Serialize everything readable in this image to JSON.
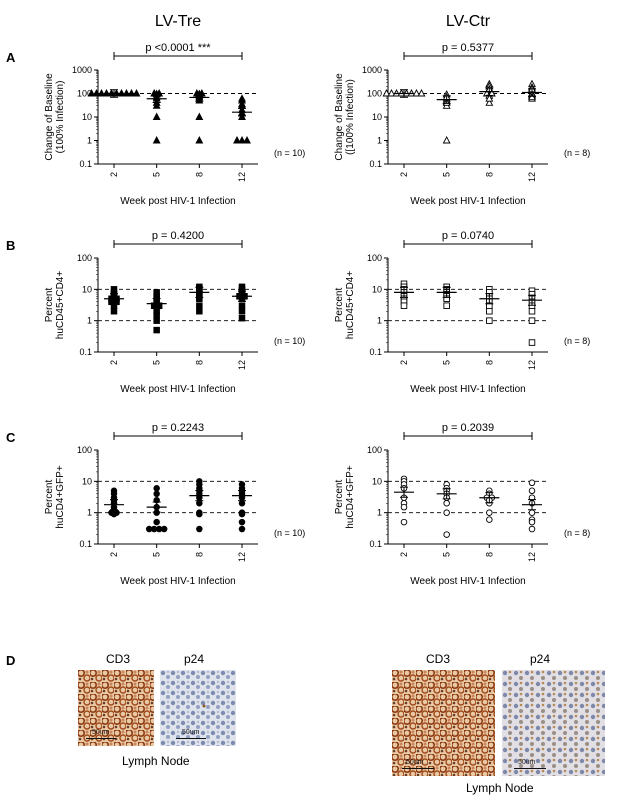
{
  "columns": [
    {
      "title": "LV-Tre"
    },
    {
      "title": "LV-Ctr"
    }
  ],
  "rows": [
    {
      "letter": "A",
      "ylabel1": "Change of Baseline",
      "ylabel2": "(100% Infection)",
      "ylabel2_right": "([100% Infection)",
      "marker": "triangle"
    },
    {
      "letter": "B",
      "ylabel1": "Percent",
      "ylabel2": "huCD45+CD4+",
      "marker": "square"
    },
    {
      "letter": "C",
      "ylabel1": "Percent",
      "ylabel2": "huCD4+GFP+",
      "marker": "circle"
    }
  ],
  "chart_data": [
    {
      "type": "scatter",
      "panel": "A",
      "group": "LV-Tre",
      "title": "p <0.0001 ***",
      "n_label": "(n = 10)",
      "xlabel": "Week post HIV-1 Infection",
      "ylabel": "Change of Baseline (100% Infection)",
      "categories": [
        "2",
        "5",
        "8",
        "12"
      ],
      "yscale": "log",
      "ylim": [
        0.1,
        1000
      ],
      "yticks": [
        "0.1",
        "1",
        "10",
        "100",
        "1000"
      ],
      "ref_lines": [
        100
      ],
      "filled": true,
      "marker": "triangle",
      "series": [
        {
          "x": "2",
          "values": [
            100,
            100,
            100,
            100,
            100,
            100,
            100,
            100,
            100,
            100
          ],
          "mean": 100
        },
        {
          "x": "5",
          "values": [
            100,
            95,
            60,
            30,
            1,
            100,
            90,
            70,
            40,
            10
          ],
          "mean": 60
        },
        {
          "x": "8",
          "values": [
            100,
            95,
            80,
            60,
            1,
            100,
            90,
            70,
            50,
            10
          ],
          "mean": 68
        },
        {
          "x": "12",
          "values": [
            60,
            35,
            20,
            15,
            1,
            1,
            1,
            10,
            30,
            50
          ],
          "mean": 16
        }
      ]
    },
    {
      "type": "scatter",
      "panel": "A",
      "group": "LV-Ctr",
      "title": "p = 0.5377",
      "n_label": "(n = 8)",
      "xlabel": "Week post HIV-1 Infection",
      "ylabel": "Change of Baseline ([100% Infection)",
      "categories": [
        "2",
        "5",
        "8",
        "12"
      ],
      "yscale": "log",
      "ylim": [
        0.1,
        1000
      ],
      "yticks": [
        "0.1",
        "1",
        "10",
        "100",
        "1000"
      ],
      "ref_lines": [
        100
      ],
      "filled": false,
      "marker": "triangle",
      "series": [
        {
          "x": "2",
          "values": [
            100,
            100,
            100,
            100,
            100,
            100,
            100,
            100
          ],
          "mean": 100
        },
        {
          "x": "5",
          "values": [
            90,
            60,
            45,
            50,
            30,
            1,
            70,
            40
          ],
          "mean": 55
        },
        {
          "x": "8",
          "values": [
            250,
            200,
            100,
            80,
            40,
            150,
            100,
            60
          ],
          "mean": 120
        },
        {
          "x": "12",
          "values": [
            250,
            180,
            100,
            80,
            60,
            150,
            90,
            70
          ],
          "mean": 110
        }
      ]
    },
    {
      "type": "scatter",
      "panel": "B",
      "group": "LV-Tre",
      "title": "p = 0.4200",
      "n_label": "(n = 10)",
      "xlabel": "Week post HIV-1 Infection",
      "ylabel": "Percent huCD45+CD4+",
      "categories": [
        "2",
        "5",
        "8",
        "12"
      ],
      "yscale": "log",
      "ylim": [
        0.1,
        100
      ],
      "yticks": [
        "0.1",
        "1",
        "10",
        "100"
      ],
      "ref_lines": [
        10,
        1
      ],
      "filled": true,
      "marker": "square",
      "series": [
        {
          "x": "2",
          "values": [
            8,
            6,
            5,
            4,
            3,
            10,
            7,
            5,
            4,
            2
          ],
          "mean": 5
        },
        {
          "x": "5",
          "values": [
            8,
            5,
            4,
            3,
            2,
            1,
            0.5,
            6,
            3,
            1.5
          ],
          "mean": 3.5
        },
        {
          "x": "8",
          "values": [
            12,
            10,
            9,
            8,
            6,
            3,
            2,
            11,
            7,
            5
          ],
          "mean": 8
        },
        {
          "x": "12",
          "values": [
            12,
            10,
            8,
            6,
            5,
            3,
            2,
            9,
            6,
            1.2
          ],
          "mean": 6
        }
      ]
    },
    {
      "type": "scatter",
      "panel": "B",
      "group": "LV-Ctr",
      "title": "p = 0.0740",
      "n_label": "(n = 8)",
      "xlabel": "Week post HIV-1 Infection",
      "ylabel": "Percent huCD45+CD4+",
      "categories": [
        "2",
        "5",
        "8",
        "12"
      ],
      "yscale": "log",
      "ylim": [
        0.1,
        100
      ],
      "yticks": [
        "0.1",
        "1",
        "10",
        "100"
      ],
      "ref_lines": [
        10,
        1
      ],
      "filled": false,
      "marker": "square",
      "series": [
        {
          "x": "2",
          "values": [
            15,
            12,
            10,
            8,
            6,
            5,
            4,
            3
          ],
          "mean": 8
        },
        {
          "x": "5",
          "values": [
            12,
            10,
            9,
            8,
            7,
            6,
            5,
            3
          ],
          "mean": 8
        },
        {
          "x": "8",
          "values": [
            10,
            8,
            6,
            5,
            4,
            3,
            2,
            1
          ],
          "mean": 5
        },
        {
          "x": "12",
          "values": [
            9,
            7,
            5,
            4,
            3,
            2,
            1,
            0.2
          ],
          "mean": 4.5
        }
      ]
    },
    {
      "type": "scatter",
      "panel": "C",
      "group": "LV-Tre",
      "title": "p = 0.2243",
      "n_label": "(n = 10)",
      "xlabel": "Week post HIV-1 Infection",
      "ylabel": "Percent huCD4+GFP+",
      "categories": [
        "2",
        "5",
        "8",
        "12"
      ],
      "yscale": "log",
      "ylim": [
        0.1,
        100
      ],
      "yticks": [
        "0.1",
        "1",
        "10",
        "100"
      ],
      "ref_lines": [
        10,
        1
      ],
      "filled": true,
      "marker": "circle",
      "series": [
        {
          "x": "2",
          "values": [
            5,
            3,
            2,
            1.5,
            1.2,
            1,
            1,
            0.9,
            2.5,
            4
          ],
          "mean": 1.8
        },
        {
          "x": "5",
          "values": [
            6,
            4,
            2.5,
            1.5,
            1,
            0.5,
            0.3,
            0.3,
            0.3,
            0.3
          ],
          "mean": 1.5
        },
        {
          "x": "8",
          "values": [
            10,
            8,
            6,
            5,
            3,
            2,
            1,
            0.9,
            0.3,
            4
          ],
          "mean": 3.5
        },
        {
          "x": "12",
          "values": [
            8,
            6,
            5,
            3,
            2,
            1,
            0.9,
            0.5,
            0.3,
            4
          ],
          "mean": 3.5
        }
      ]
    },
    {
      "type": "scatter",
      "panel": "C",
      "group": "LV-Ctr",
      "title": "p = 0.2039",
      "n_label": "(n = 8)",
      "xlabel": "Week post HIV-1 Infection",
      "ylabel": "Percent huCD4+GFP+",
      "categories": [
        "2",
        "5",
        "8",
        "12"
      ],
      "yscale": "log",
      "ylim": [
        0.1,
        100
      ],
      "yticks": [
        "0.1",
        "1",
        "10",
        "100"
      ],
      "ref_lines": [
        10,
        1
      ],
      "filled": false,
      "marker": "circle",
      "series": [
        {
          "x": "2",
          "values": [
            12,
            10,
            8,
            6,
            3,
            2,
            1.5,
            0.5
          ],
          "mean": 4.5
        },
        {
          "x": "5",
          "values": [
            8,
            6,
            5,
            4,
            3,
            2,
            1,
            0.2
          ],
          "mean": 4
        },
        {
          "x": "8",
          "values": [
            5,
            4,
            3,
            3,
            2,
            1,
            0.6,
            2.5
          ],
          "mean": 3
        },
        {
          "x": "12",
          "values": [
            9,
            5,
            3,
            2,
            1,
            0.6,
            0.3,
            0.5
          ],
          "mean": 1.8
        }
      ]
    }
  ],
  "panelD": {
    "letter": "D",
    "groups": [
      {
        "label": "Lymph Node",
        "images": [
          {
            "title": "CD3",
            "scale": "50um",
            "style": "cd3"
          },
          {
            "title": "p24",
            "scale": "50um",
            "style": "p24a"
          }
        ]
      },
      {
        "label": "Lymph Node",
        "images": [
          {
            "title": "CD3",
            "scale": "50um",
            "style": "cd3"
          },
          {
            "title": "p24",
            "scale": "50um",
            "style": "p24b"
          }
        ]
      }
    ]
  }
}
